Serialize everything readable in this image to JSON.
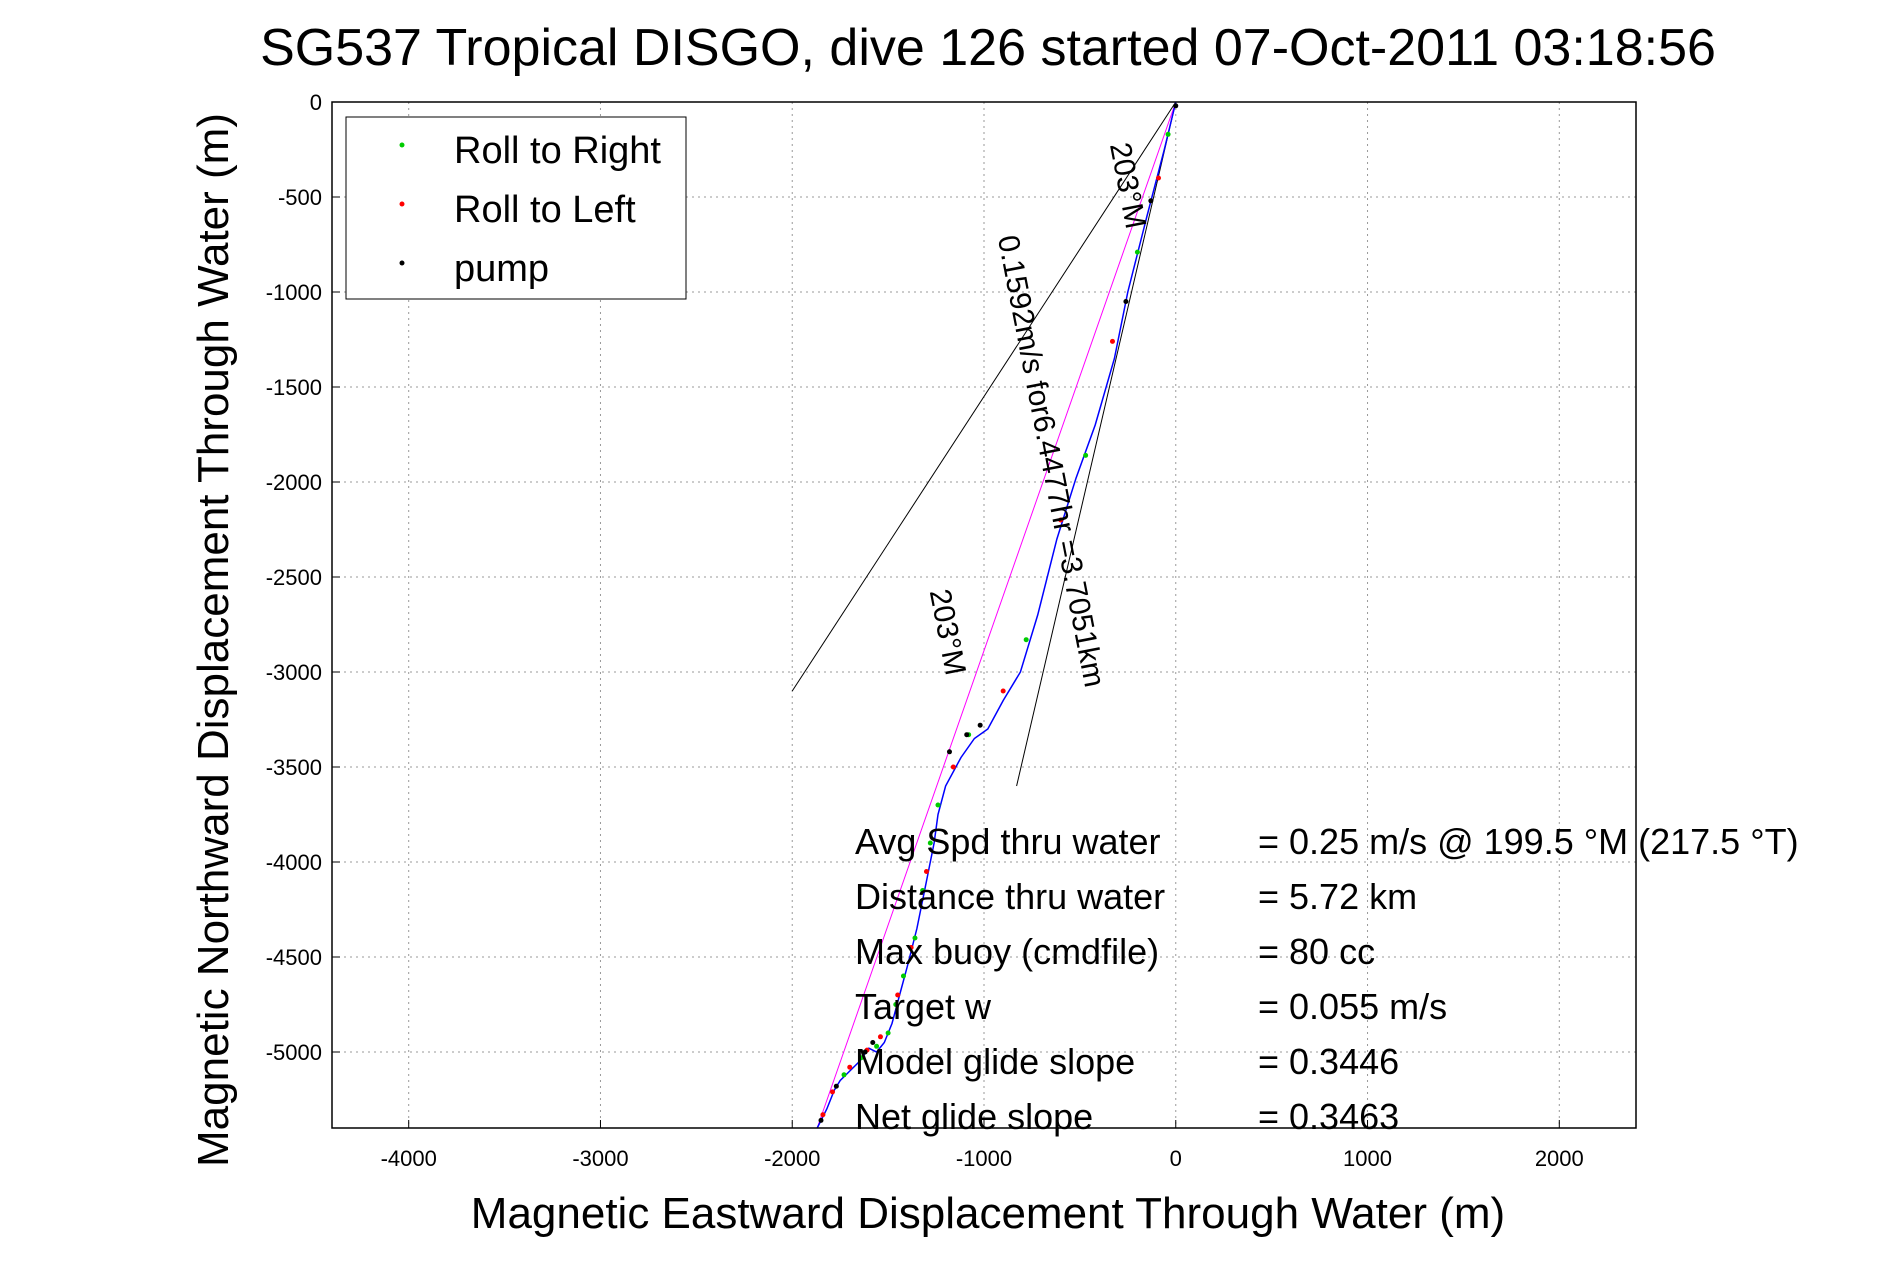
{
  "chart_data": {
    "type": "scatter",
    "title": "SG537 Tropical DISGO, dive 126 started 07-Oct-2011 03:18:56",
    "xlabel": "Magnetic Eastward Displacement Through Water (m)",
    "ylabel": "Magnetic Northward Displacement Through Water (m)",
    "xlim": [
      -4400,
      2400
    ],
    "ylim": [
      -5400,
      0
    ],
    "xticks": [
      -4000,
      -3000,
      -2000,
      -1000,
      0,
      1000,
      2000
    ],
    "yticks": [
      0,
      -500,
      -1000,
      -1500,
      -2000,
      -2500,
      -3000,
      -3500,
      -4000,
      -4500,
      -5000
    ],
    "grid": true,
    "legend_position": "top-left",
    "legend": [
      {
        "label": "Roll to Right",
        "color": "#00cc00"
      },
      {
        "label": "Roll to Left",
        "color": "#ff0000"
      },
      {
        "label": "pump",
        "color": "#000000"
      }
    ],
    "colors": {
      "track": "#0000ff",
      "intended_course": "#ff00ff",
      "annotation_lines": "#000000",
      "roll_right": "#00cc00",
      "roll_left": "#ff0000",
      "pump": "#000000"
    },
    "track": {
      "x": [
        0,
        -60,
        -150,
        -250,
        -320,
        -420,
        -520,
        -620,
        -720,
        -810,
        -900,
        -980,
        -1050,
        -1120,
        -1200,
        -1240,
        -1260,
        -1300,
        -1350,
        -1400,
        -1440,
        -1480,
        -1520,
        -1560,
        -1600,
        -1650,
        -1700,
        -1750,
        -1780,
        -1820,
        -1870
      ],
      "y": [
        0,
        -250,
        -600,
        -1000,
        -1350,
        -1700,
        -1980,
        -2300,
        -2700,
        -3000,
        -3150,
        -3300,
        -3350,
        -3450,
        -3600,
        -3750,
        -3900,
        -4100,
        -4350,
        -4550,
        -4700,
        -4850,
        -4950,
        -5000,
        -4980,
        -5050,
        -5100,
        -5150,
        -5200,
        -5300,
        -5400
      ]
    },
    "roll_right": {
      "x": [
        -40,
        -200,
        -470,
        -780,
        -1080,
        -1240,
        -1280,
        -1320,
        -1360,
        -1420,
        -1460,
        -1500,
        -1560,
        -1640,
        -1730
      ],
      "y": [
        -170,
        -790,
        -1860,
        -2830,
        -3330,
        -3700,
        -3900,
        -4150,
        -4400,
        -4600,
        -4750,
        -4900,
        -4970,
        -5030,
        -5120
      ]
    },
    "roll_left": {
      "x": [
        -90,
        -330,
        -600,
        -900,
        -1160,
        -1300,
        -1380,
        -1450,
        -1540,
        -1610,
        -1700,
        -1790,
        -1840
      ],
      "y": [
        -400,
        -1260,
        -2200,
        -3100,
        -3500,
        -4050,
        -4450,
        -4700,
        -4920,
        -4990,
        -5080,
        -5210,
        -5330
      ]
    },
    "pump": {
      "x": [
        0,
        -130,
        -260,
        -1020,
        -1090,
        -1180,
        -1580,
        -1620,
        -1770,
        -1850
      ],
      "y": [
        -20,
        -520,
        -1050,
        -3280,
        -3330,
        -3420,
        -4950,
        -5000,
        -5180,
        -5360
      ]
    },
    "annotation_lines": [
      {
        "x": [
          0,
          -2000
        ],
        "y": [
          0,
          -3100
        ]
      },
      {
        "x": [
          0,
          -830
        ],
        "y": [
          0,
          -3600
        ]
      }
    ],
    "annotations": [
      {
        "text": "203°M",
        "x": -300,
        "y": -450,
        "angle_deg": 79
      },
      {
        "text": "0.1592m/s for6.4477hr =3.7051km",
        "x": -700,
        "y": -1900,
        "angle_deg": 79
      },
      {
        "text": "203°M",
        "x": -1240,
        "y": -2800,
        "angle_deg": 79
      }
    ],
    "stats": [
      {
        "label": "Avg Spd thru water",
        "value": "=  0.25 m/s @ 199.5 °M (217.5 °T)"
      },
      {
        "label": "Distance thru water",
        "value": "=  5.72 km"
      },
      {
        "label": "Max buoy (cmdfile)",
        "value": "= 80 cc"
      },
      {
        "label": "Target w",
        "value": "= 0.055 m/s"
      },
      {
        "label": "Model glide slope",
        "value": "= 0.3446"
      },
      {
        "label": "Net glide slope",
        "value": "= 0.3463"
      }
    ]
  }
}
